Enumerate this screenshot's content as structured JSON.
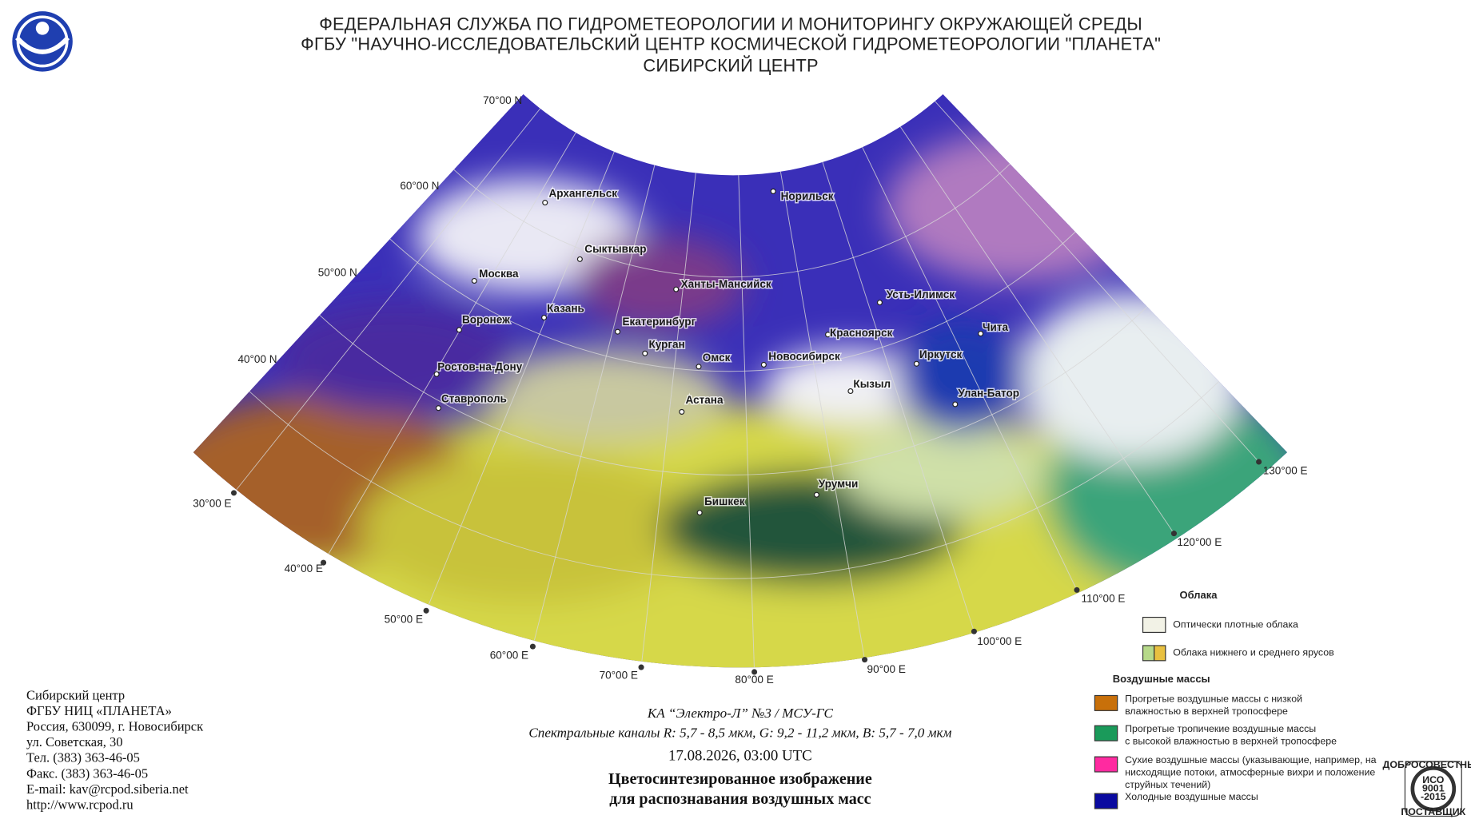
{
  "header": {
    "lines": [
      "ФЕДЕРАЛЬНАЯ СЛУЖБА ПО ГИДРОМЕТЕОРОЛОГИИ И МОНИТОРИНГУ ОКРУЖАЮЩЕЙ СРЕДЫ",
      "ФГБУ \"НАУЧНО-ИССЛЕДОВАТЕЛЬСКИЙ ЦЕНТР КОСМИЧЕСКОЙ ГИДРОМЕТЕОРОЛОГИИ \"ПЛАНЕТА\"",
      "СИБИРСКИЙ ЦЕНТР"
    ]
  },
  "map": {
    "latitude_labels": [
      "70°00 N",
      "60°00 N",
      "50°00 N",
      "40°00 N"
    ],
    "longitude_labels": [
      "30°00 E",
      "40°00 E",
      "50°00 E",
      "60°00 E",
      "70°00 E",
      "80°00 E",
      "90°00 E",
      "100°00 E",
      "110°00 E",
      "120°00 E",
      "130°00 E"
    ],
    "cities": [
      "Архангельск",
      "Норильск",
      "Сыктывкар",
      "Москва",
      "Ханты-Мансийск",
      "Казань",
      "Усть-Илимск",
      "Воронеж",
      "Екатеринбург",
      "Красноярск",
      "Чита",
      "Курган",
      "Омск",
      "Новосибирск",
      "Иркутск",
      "Ростов-на-Дону",
      "Кызыл",
      "Улан-Батор",
      "Ставрополь",
      "Астана",
      "Урумчи",
      "Бишкек"
    ]
  },
  "legend": {
    "clouds_title": "Облака",
    "clouds": [
      "Оптически плотные облака",
      "Облака нижнего и среднего ярусов"
    ],
    "air_masses_title": "Воздушные массы",
    "air_masses": [
      {
        "lines": [
          "Прогретые воздушные массы с низкой",
          "влажностью в верхней тропосфере"
        ]
      },
      {
        "lines": [
          "Прогретые тропичекие воздушные массы",
          "с высокой влажностью в верхней тропосфере"
        ]
      },
      {
        "lines": [
          "Сухие воздушные массы (указывающие, например, на",
          "нисходящие потоки, атмосферные вихри и положение",
          "струйных течений)"
        ]
      },
      {
        "lines": [
          "Холодные воздушные массы"
        ]
      }
    ]
  },
  "caption": {
    "satellite": "КА “Электро-Л” №3 / МСУ-ГС",
    "channels": "Спектральные каналы R: 5,7 - 8,5 мкм, G: 9,2 - 11,2 мкм, B: 5,7 - 7,0 мкм",
    "datetime": "17.08.2026, 03:00 UTC",
    "title_lines": [
      "Цветосинтезированное изображение",
      "для распознавания воздушных масс"
    ]
  },
  "contacts": {
    "lines": [
      "Сибирский центр",
      "ФГБУ НИЦ «ПЛАНЕТА»",
      "Россия, 630099, г. Новосибирск",
      "ул. Советская, 30",
      "Тел. (383) 363-46-05",
      "Факс. (383) 363-46-05",
      "E-mail: kav@rcpod.siberia.net",
      "http://www.rcpod.ru"
    ]
  },
  "certificate": {
    "lines": [
      "ДОБРОСОВЕСТНЫЙ",
      "ИСО",
      "9001",
      "-2015",
      "ПОСТАВЩИК"
    ]
  }
}
